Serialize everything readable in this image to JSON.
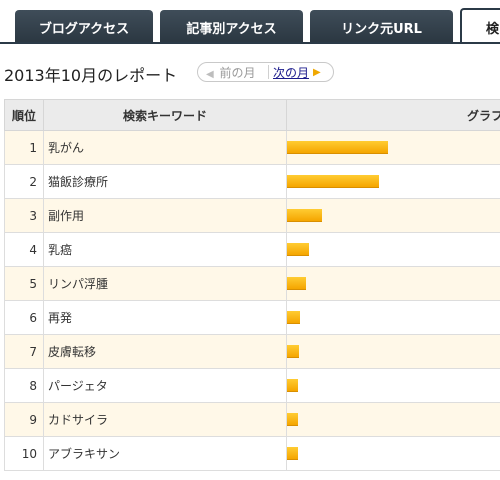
{
  "tabs": [
    {
      "label": "ブログアクセス"
    },
    {
      "label": "記事別アクセス"
    },
    {
      "label": "リンク元URL"
    },
    {
      "label": "検"
    }
  ],
  "report": {
    "title": "2013年10月のレポート",
    "prev_label": "前の月",
    "next_label": "次の月"
  },
  "table": {
    "headers": {
      "rank": "順位",
      "keyword": "検索キーワード",
      "graph": "グラフ"
    },
    "rows": [
      {
        "rank": "1",
        "keyword": "乳がん",
        "value": 100
      },
      {
        "rank": "2",
        "keyword": "猫飯診療所",
        "value": 91
      },
      {
        "rank": "3",
        "keyword": "副作用",
        "value": 35
      },
      {
        "rank": "4",
        "keyword": "乳癌",
        "value": 22
      },
      {
        "rank": "5",
        "keyword": "リンパ浮腫",
        "value": 19
      },
      {
        "rank": "6",
        "keyword": "再発",
        "value": 13
      },
      {
        "rank": "7",
        "keyword": "皮膚転移",
        "value": 12
      },
      {
        "rank": "8",
        "keyword": "パージェタ",
        "value": 11
      },
      {
        "rank": "9",
        "keyword": "カドサイラ",
        "value": 11
      },
      {
        "rank": "10",
        "keyword": "アブラキサン",
        "value": 11
      }
    ],
    "bar_color": "#f5a500",
    "odd_row_color": "#fff8e8"
  }
}
